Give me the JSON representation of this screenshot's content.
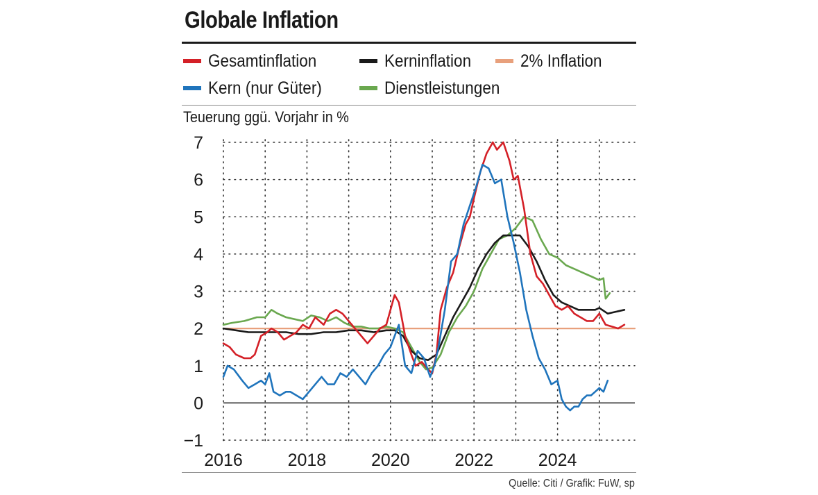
{
  "chart_data": {
    "type": "line",
    "title": "Globale Inflation",
    "ylabel": "Teuerung ggü. Vorjahr in %",
    "xlabel": "",
    "source": "Quelle: Citi / Grafik: FuW, sp",
    "xlim": [
      2016.0,
      2025.85
    ],
    "ylim": [
      -1,
      7
    ],
    "x_ticks": [
      "2016",
      "2018",
      "2020",
      "2022",
      "2024"
    ],
    "x_tick_values": [
      2016,
      2018,
      2020,
      2022,
      2024
    ],
    "y_ticks": [
      "7",
      "6",
      "5",
      "4",
      "3",
      "2",
      "1",
      "0",
      "−1"
    ],
    "y_tick_values": [
      7,
      6,
      5,
      4,
      3,
      2,
      1,
      0,
      -1
    ],
    "grid": "dotted",
    "legend": [
      {
        "name": "Gesamtinflation",
        "color": "#d42027"
      },
      {
        "name": "Kerninflation",
        "color": "#1a1a1a"
      },
      {
        "name": "2% Inflation",
        "color": "#e8a07c"
      },
      {
        "name": "Kern (nur Güter)",
        "color": "#1f74bc"
      },
      {
        "name": "Dienstleistungen",
        "color": "#6aa84f"
      }
    ],
    "series": [
      {
        "name": "2% Inflation",
        "color": "#e8a07c",
        "width": 2.2,
        "x": [
          2016.0,
          2025.85
        ],
        "y": [
          2.0,
          2.0
        ]
      },
      {
        "name": "Dienstleistungen",
        "color": "#6aa84f",
        "width": 2.6,
        "x": [
          2016.0,
          2016.2,
          2016.5,
          2016.8,
          2017.0,
          2017.15,
          2017.3,
          2017.5,
          2017.7,
          2017.9,
          2018.1,
          2018.3,
          2018.5,
          2018.7,
          2018.9,
          2019.1,
          2019.3,
          2019.5,
          2019.7,
          2019.9,
          2020.1,
          2020.3,
          2020.5,
          2020.7,
          2020.85,
          2021.0,
          2021.2,
          2021.4,
          2021.6,
          2021.8,
          2022.0,
          2022.2,
          2022.4,
          2022.6,
          2022.8,
          2023.0,
          2023.2,
          2023.4,
          2023.6,
          2023.8,
          2024.0,
          2024.2,
          2024.4,
          2024.6,
          2024.8,
          2025.0,
          2025.1,
          2025.15,
          2025.25
        ],
        "y": [
          2.1,
          2.15,
          2.2,
          2.3,
          2.3,
          2.5,
          2.4,
          2.3,
          2.25,
          2.2,
          2.35,
          2.3,
          2.2,
          2.3,
          2.15,
          2.05,
          2.05,
          2.0,
          2.0,
          2.05,
          2.0,
          1.9,
          1.5,
          1.1,
          0.9,
          0.95,
          1.3,
          1.9,
          2.3,
          2.6,
          3.0,
          3.6,
          4.0,
          4.4,
          4.5,
          4.7,
          5.0,
          4.9,
          4.4,
          4.0,
          3.9,
          3.7,
          3.6,
          3.5,
          3.4,
          3.3,
          3.35,
          2.8,
          2.95
        ]
      },
      {
        "name": "Kerninflation",
        "color": "#1a1a1a",
        "width": 2.6,
        "x": [
          2016.0,
          2016.3,
          2016.6,
          2016.9,
          2017.2,
          2017.5,
          2017.8,
          2018.1,
          2018.4,
          2018.7,
          2019.0,
          2019.3,
          2019.6,
          2019.9,
          2020.1,
          2020.3,
          2020.5,
          2020.7,
          2020.9,
          2021.1,
          2021.3,
          2021.5,
          2021.7,
          2021.9,
          2022.1,
          2022.3,
          2022.5,
          2022.7,
          2022.9,
          2023.1,
          2023.3,
          2023.5,
          2023.7,
          2023.9,
          2024.1,
          2024.3,
          2024.5,
          2024.7,
          2024.9,
          2025.0,
          2025.2,
          2025.4,
          2025.6
        ],
        "y": [
          2.0,
          1.95,
          1.9,
          1.9,
          1.9,
          1.9,
          1.85,
          1.85,
          1.9,
          1.9,
          1.95,
          1.95,
          1.9,
          1.95,
          1.95,
          1.8,
          1.4,
          1.2,
          1.15,
          1.3,
          1.8,
          2.3,
          2.7,
          3.1,
          3.6,
          4.0,
          4.3,
          4.5,
          4.5,
          4.5,
          4.2,
          3.8,
          3.3,
          2.9,
          2.7,
          2.6,
          2.5,
          2.5,
          2.5,
          2.55,
          2.4,
          2.45,
          2.5
        ]
      },
      {
        "name": "Gesamtinflation",
        "color": "#d42027",
        "width": 2.6,
        "x": [
          2016.0,
          2016.15,
          2016.3,
          2016.5,
          2016.65,
          2016.75,
          2016.9,
          2017.05,
          2017.15,
          2017.3,
          2017.45,
          2017.6,
          2017.75,
          2017.9,
          2018.05,
          2018.2,
          2018.4,
          2018.55,
          2018.7,
          2018.85,
          2019.0,
          2019.15,
          2019.3,
          2019.45,
          2019.6,
          2019.75,
          2019.9,
          2020.0,
          2020.1,
          2020.2,
          2020.35,
          2020.5,
          2020.6,
          2020.75,
          2020.9,
          2021.0,
          2021.1,
          2021.2,
          2021.35,
          2021.5,
          2021.65,
          2021.8,
          2021.9,
          2022.0,
          2022.15,
          2022.3,
          2022.45,
          2022.55,
          2022.7,
          2022.85,
          2022.95,
          2023.05,
          2023.2,
          2023.35,
          2023.5,
          2023.65,
          2023.8,
          2023.95,
          2024.1,
          2024.25,
          2024.4,
          2024.55,
          2024.7,
          2024.85,
          2025.0,
          2025.15,
          2025.3,
          2025.45,
          2025.6
        ],
        "y": [
          1.6,
          1.5,
          1.3,
          1.2,
          1.2,
          1.3,
          1.8,
          1.9,
          2.0,
          1.9,
          1.7,
          1.8,
          1.9,
          2.1,
          2.0,
          2.3,
          2.1,
          2.4,
          2.5,
          2.4,
          2.2,
          2.0,
          1.8,
          1.6,
          1.8,
          2.0,
          2.1,
          2.5,
          2.9,
          2.7,
          1.8,
          1.3,
          1.0,
          1.1,
          0.9,
          0.8,
          1.3,
          2.5,
          3.1,
          3.5,
          4.2,
          4.8,
          5.0,
          5.5,
          6.2,
          6.7,
          7.0,
          6.8,
          7.0,
          6.5,
          6.0,
          6.1,
          5.2,
          4.0,
          3.4,
          3.2,
          2.9,
          2.6,
          2.5,
          2.6,
          2.4,
          2.3,
          2.2,
          2.2,
          2.4,
          2.1,
          2.05,
          2.0,
          2.1
        ]
      },
      {
        "name": "Kern (nur Güter)",
        "color": "#1f74bc",
        "width": 2.6,
        "x": [
          2016.0,
          2016.1,
          2016.25,
          2016.45,
          2016.6,
          2016.75,
          2016.9,
          2017.0,
          2017.1,
          2017.2,
          2017.35,
          2017.5,
          2017.6,
          2017.75,
          2017.9,
          2018.05,
          2018.2,
          2018.35,
          2018.5,
          2018.65,
          2018.8,
          2018.95,
          2019.1,
          2019.25,
          2019.4,
          2019.55,
          2019.7,
          2019.85,
          2020.0,
          2020.1,
          2020.2,
          2020.35,
          2020.5,
          2020.65,
          2020.8,
          2020.95,
          2021.05,
          2021.15,
          2021.3,
          2021.45,
          2021.6,
          2021.75,
          2021.9,
          2022.05,
          2022.2,
          2022.35,
          2022.5,
          2022.65,
          2022.8,
          2022.95,
          2023.1,
          2023.25,
          2023.4,
          2023.55,
          2023.7,
          2023.85,
          2024.0,
          2024.1,
          2024.2,
          2024.3,
          2024.4,
          2024.5,
          2024.6,
          2024.7,
          2024.8,
          2024.9,
          2025.0,
          2025.1,
          2025.2
        ],
        "y": [
          0.7,
          1.0,
          0.9,
          0.6,
          0.4,
          0.5,
          0.6,
          0.5,
          0.8,
          0.3,
          0.2,
          0.3,
          0.3,
          0.2,
          0.1,
          0.3,
          0.5,
          0.7,
          0.5,
          0.5,
          0.8,
          0.7,
          0.9,
          0.7,
          0.5,
          0.8,
          1.0,
          1.3,
          1.5,
          1.8,
          2.1,
          1.0,
          0.8,
          1.4,
          1.2,
          0.7,
          1.0,
          1.5,
          2.5,
          3.8,
          4.0,
          4.8,
          5.3,
          5.8,
          6.4,
          6.3,
          5.9,
          6.0,
          5.0,
          4.3,
          3.5,
          2.5,
          1.8,
          1.2,
          0.9,
          0.5,
          0.6,
          0.1,
          -0.1,
          -0.2,
          -0.1,
          -0.1,
          0.1,
          0.2,
          0.2,
          0.3,
          0.4,
          0.3,
          0.6
        ]
      }
    ]
  }
}
